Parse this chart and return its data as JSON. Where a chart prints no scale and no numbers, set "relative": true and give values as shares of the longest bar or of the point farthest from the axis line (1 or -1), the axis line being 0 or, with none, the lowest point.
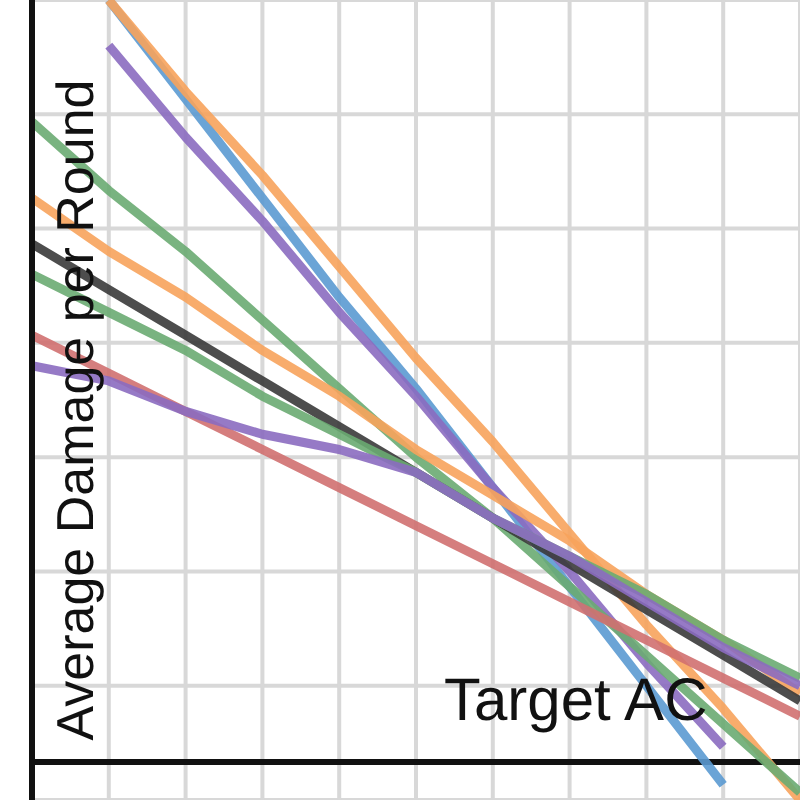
{
  "chart_data": {
    "type": "line",
    "relative": true,
    "xlabel": "Target AC",
    "ylabel": "Average Damage per Round",
    "grid": true,
    "legend": false,
    "tick_labels": false,
    "categories": [
      null,
      null,
      null,
      null,
      null,
      null,
      null,
      null,
      null,
      null,
      null
    ],
    "series": [
      {
        "color": "#5b9ad2",
        "values": [
          null,
          1.0,
          0.87,
          0.74,
          0.61,
          0.49,
          0.36,
          0.23,
          0.1,
          -0.03,
          null
        ]
      },
      {
        "color": "#8b6cc0",
        "values": [
          null,
          0.94,
          0.82,
          0.71,
          0.59,
          0.48,
          0.36,
          0.25,
          0.13,
          0.02,
          null
        ]
      },
      {
        "color": "#f7a35c",
        "values": [
          null,
          1.0,
          0.88,
          0.77,
          0.65,
          0.53,
          0.42,
          0.3,
          0.18,
          0.07,
          -0.05
        ]
      },
      {
        "color": "#6aab72",
        "values": [
          0.84,
          0.75,
          0.67,
          0.58,
          0.49,
          0.4,
          0.32,
          0.23,
          0.14,
          0.05,
          -0.04
        ]
      },
      {
        "color": "#f7a35c",
        "values": [
          0.74,
          0.67,
          0.61,
          0.54,
          0.48,
          0.41,
          0.35,
          0.29,
          0.22,
          0.16,
          0.09
        ]
      },
      {
        "color": "#3a3a3a",
        "values": [
          0.68,
          0.62,
          0.56,
          0.5,
          0.44,
          0.38,
          0.32,
          0.26,
          0.2,
          0.14,
          0.08
        ]
      },
      {
        "color": "#6aab72",
        "values": [
          0.64,
          0.59,
          0.54,
          0.48,
          0.43,
          0.38,
          0.32,
          0.27,
          0.22,
          0.16,
          0.11
        ]
      },
      {
        "color": "#d07070",
        "values": [
          0.56,
          0.51,
          0.46,
          0.41,
          0.36,
          0.31,
          0.26,
          0.21,
          0.16,
          0.11,
          0.06
        ]
      },
      {
        "color": "#8b6cc0",
        "values": [
          0.52,
          0.5,
          0.46,
          0.43,
          0.41,
          0.38,
          0.32,
          0.27,
          0.21,
          0.15,
          0.1
        ]
      }
    ]
  }
}
